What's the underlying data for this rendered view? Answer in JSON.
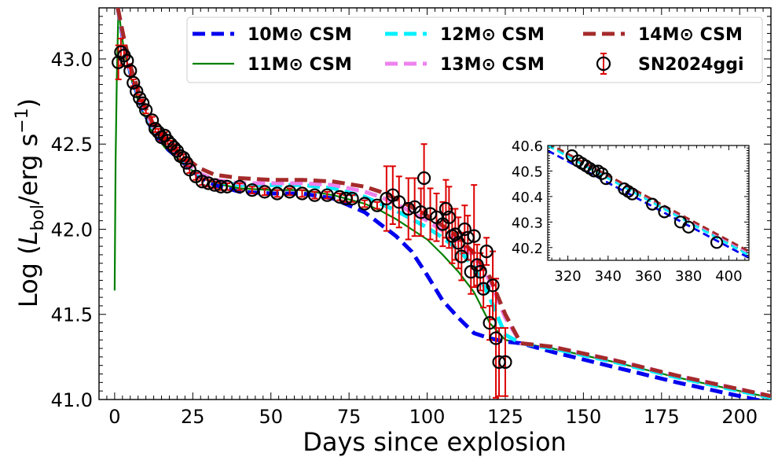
{
  "chart_data": {
    "type": "line",
    "xlabel": "Days since explosion",
    "ylabel": "Log (L_bol/erg s^-1)",
    "ylabel_parts": {
      "prefix": "Log (",
      "L": "L",
      "sub": "bol",
      "mid": "/erg s",
      "sup": "−1",
      "suffix": ")"
    },
    "xlim": [
      -5,
      210
    ],
    "ylim": [
      41.0,
      43.3
    ],
    "xticks": [
      0,
      25,
      50,
      75,
      100,
      125,
      150,
      175,
      200
    ],
    "yticks": [
      41.0,
      41.5,
      42.0,
      42.5,
      43.0
    ],
    "ytick_labels": [
      "41.0",
      "41.5",
      "42.0",
      "42.5",
      "43.0"
    ],
    "legend_position": "top-right",
    "series": [
      {
        "name": "10M⊙ CSM",
        "color": "#0000ee",
        "style": "dashed-thick",
        "x": [
          1,
          3,
          5,
          8,
          12,
          17,
          22,
          27,
          32,
          40,
          50,
          60,
          70,
          80,
          85,
          90,
          95,
          100,
          105,
          110,
          115,
          120,
          125,
          130,
          140,
          160,
          180,
          200,
          210
        ],
        "y": [
          43.3,
          43.08,
          42.92,
          42.75,
          42.58,
          42.47,
          42.39,
          42.31,
          42.26,
          42.22,
          42.21,
          42.21,
          42.18,
          42.1,
          42.03,
          41.96,
          41.87,
          41.73,
          41.58,
          41.48,
          41.39,
          41.36,
          41.34,
          41.33,
          41.28,
          41.19,
          41.1,
          41.02,
          40.98
        ]
      },
      {
        "name": "11M⊙ CSM",
        "color": "#008000",
        "style": "solid",
        "x": [
          0,
          0.3,
          0.7,
          1.2,
          2,
          3,
          5,
          8,
          12,
          17,
          22,
          27,
          32,
          40,
          50,
          60,
          70,
          80,
          85,
          90,
          95,
          100,
          105,
          110,
          115,
          120,
          125,
          130,
          140,
          160,
          180,
          200,
          210
        ],
        "y": [
          41.64,
          42.4,
          42.9,
          43.3,
          43.18,
          43.05,
          42.9,
          42.73,
          42.57,
          42.46,
          42.39,
          42.31,
          42.27,
          42.24,
          42.23,
          42.23,
          42.2,
          42.15,
          42.11,
          42.06,
          42.0,
          41.94,
          41.85,
          41.75,
          41.63,
          41.45,
          41.35,
          41.33,
          41.3,
          41.22,
          41.13,
          41.05,
          41.01
        ]
      },
      {
        "name": "12M⊙ CSM",
        "color": "#00f0ff",
        "style": "dashed-thick",
        "x": [
          1,
          3,
          5,
          8,
          12,
          17,
          22,
          27,
          32,
          40,
          50,
          60,
          70,
          80,
          85,
          90,
          95,
          100,
          105,
          110,
          115,
          120,
          125,
          130,
          140,
          160,
          180,
          200,
          210
        ],
        "y": [
          43.3,
          43.1,
          42.93,
          42.76,
          42.6,
          42.48,
          42.4,
          42.32,
          42.28,
          42.26,
          42.26,
          42.26,
          42.24,
          42.19,
          42.15,
          42.11,
          42.06,
          42.01,
          41.95,
          41.88,
          41.78,
          41.6,
          41.38,
          41.33,
          41.3,
          41.22,
          41.13,
          41.05,
          41.01
        ]
      },
      {
        "name": "13M⊙ CSM",
        "color": "#ee82ee",
        "style": "dashed-thick",
        "x": [
          1,
          3,
          5,
          8,
          12,
          17,
          22,
          27,
          32,
          40,
          50,
          60,
          70,
          80,
          85,
          90,
          95,
          100,
          105,
          110,
          115,
          120,
          125,
          130,
          140,
          160,
          180,
          200,
          210
        ],
        "y": [
          43.3,
          43.1,
          42.94,
          42.77,
          42.61,
          42.49,
          42.41,
          42.33,
          42.29,
          42.27,
          42.27,
          42.27,
          42.26,
          42.22,
          42.19,
          42.15,
          42.1,
          42.05,
          41.99,
          41.93,
          41.84,
          41.7,
          41.48,
          41.33,
          41.31,
          41.23,
          41.14,
          41.06,
          41.02
        ]
      },
      {
        "name": "14M⊙ CSM",
        "color": "#a52a2a",
        "style": "dashed-thick",
        "x": [
          1,
          3,
          5,
          8,
          12,
          17,
          22,
          27,
          32,
          40,
          50,
          60,
          70,
          80,
          85,
          90,
          95,
          100,
          105,
          110,
          115,
          120,
          125,
          130,
          140,
          160,
          180,
          200,
          210
        ],
        "y": [
          43.3,
          43.12,
          42.96,
          42.79,
          42.63,
          42.51,
          42.43,
          42.36,
          42.32,
          42.3,
          42.29,
          42.29,
          42.28,
          42.25,
          42.22,
          42.18,
          42.13,
          42.08,
          42.02,
          41.95,
          41.86,
          41.72,
          41.5,
          41.33,
          41.31,
          41.23,
          41.14,
          41.06,
          41.02
        ]
      }
    ],
    "observations": {
      "name": "SN2024ggi",
      "x": [
        1.2,
        2,
        3,
        4,
        5,
        6,
        7,
        8,
        9,
        10,
        12,
        13,
        14,
        15,
        16,
        17,
        18,
        19,
        20,
        21,
        22,
        23,
        24,
        26,
        28,
        30,
        32,
        34,
        36,
        40,
        44,
        48,
        52,
        56,
        60,
        64,
        68,
        72,
        74,
        76,
        80,
        84,
        87,
        89,
        91,
        94,
        96,
        98,
        99,
        101,
        103,
        105,
        106,
        107,
        108,
        109,
        110,
        111,
        112,
        113,
        114,
        115,
        116,
        117,
        118,
        119,
        120,
        121,
        122,
        123,
        125
      ],
      "y": [
        42.98,
        43.04,
        43.02,
        42.99,
        42.93,
        42.86,
        42.81,
        42.77,
        42.74,
        42.7,
        42.64,
        42.59,
        42.57,
        42.54,
        42.55,
        42.52,
        42.5,
        42.48,
        42.46,
        42.43,
        42.42,
        42.39,
        42.35,
        42.31,
        42.28,
        42.27,
        42.26,
        42.25,
        42.25,
        42.25,
        42.23,
        42.22,
        42.21,
        42.22,
        42.21,
        42.2,
        42.2,
        42.19,
        42.18,
        42.18,
        42.15,
        42.14,
        42.18,
        42.2,
        42.16,
        42.12,
        42.13,
        42.1,
        42.3,
        42.09,
        42.07,
        42.03,
        42.12,
        42.07,
        41.96,
        41.97,
        41.92,
        41.84,
        42.0,
        41.95,
        41.75,
        41.96,
        41.79,
        41.75,
        41.65,
        41.87,
        41.45,
        41.67,
        41.36,
        41.22,
        41.22
      ],
      "err": [
        0.1,
        0.08,
        0.06,
        0.04,
        0.03,
        0.02,
        0.02,
        0.02,
        0.02,
        0.02,
        0.02,
        0.02,
        0.02,
        0.02,
        0.02,
        0.02,
        0.02,
        0.02,
        0.02,
        0.02,
        0.02,
        0.02,
        0.02,
        0.02,
        0.02,
        0.02,
        0.02,
        0.02,
        0.02,
        0.02,
        0.02,
        0.02,
        0.02,
        0.02,
        0.02,
        0.02,
        0.02,
        0.02,
        0.02,
        0.02,
        0.02,
        0.02,
        0.19,
        0.17,
        0.15,
        0.18,
        0.17,
        0.14,
        0.2,
        0.15,
        0.14,
        0.13,
        0.17,
        0.18,
        0.16,
        0.15,
        0.15,
        0.14,
        0.14,
        0.13,
        0.13,
        0.3,
        0.12,
        0.11,
        0.11,
        0.08,
        0.1,
        0.2,
        0.35,
        0.2,
        0.2
      ],
      "marker_color": "#000000",
      "errorbar_color": "#dd0000"
    },
    "inset": {
      "xlim": [
        310,
        410
      ],
      "ylim": [
        40.15,
        40.6
      ],
      "xticks": [
        320,
        340,
        360,
        380,
        400
      ],
      "yticks": [
        40.2,
        40.3,
        40.4,
        40.5,
        40.6
      ],
      "ytick_labels": [
        "40.2",
        "40.3",
        "40.4",
        "40.5",
        "40.6"
      ],
      "lines": [
        {
          "name": "10M⊙ CSM",
          "color": "#0000ee",
          "x": [
            310,
            410
          ],
          "y": [
            40.58,
            40.16
          ]
        },
        {
          "name": "11M⊙ CSM",
          "color": "#008000",
          "x": [
            310,
            410
          ],
          "y": [
            40.605,
            40.175
          ]
        },
        {
          "name": "12M⊙ CSM",
          "color": "#00f0ff",
          "x": [
            310,
            410
          ],
          "y": [
            40.6,
            40.17
          ]
        },
        {
          "name": "13M⊙ CSM",
          "color": "#ee82ee",
          "x": [
            310,
            410
          ],
          "y": [
            40.61,
            40.18
          ]
        },
        {
          "name": "14M⊙ CSM",
          "color": "#a52a2a",
          "x": [
            310,
            410
          ],
          "y": [
            40.61,
            40.185
          ]
        }
      ],
      "points": {
        "x": [
          322,
          325,
          327,
          329,
          331,
          333,
          335,
          337,
          339,
          348,
          350,
          352,
          362,
          368,
          376,
          380,
          394
        ],
        "y": [
          40.56,
          40.54,
          40.53,
          40.52,
          40.51,
          40.5,
          40.5,
          40.49,
          40.47,
          40.43,
          40.42,
          40.41,
          40.37,
          40.34,
          40.3,
          40.28,
          40.22
        ]
      }
    }
  }
}
